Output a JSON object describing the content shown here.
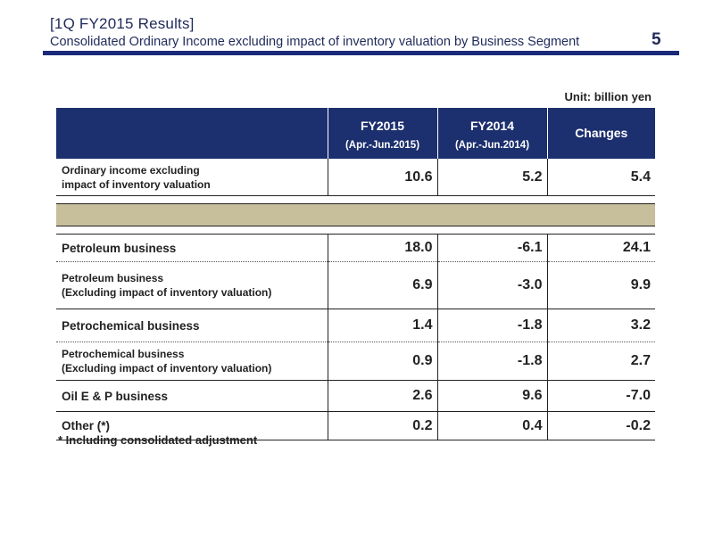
{
  "header": {
    "title": "[1Q FY2015 Results]",
    "subtitle": "Consolidated Ordinary Income excluding impact of inventory valuation by Business Segment",
    "page_number": "5",
    "rule_color": "#1a2a78"
  },
  "unit": "Unit: billion yen",
  "table": {
    "columns": [
      {
        "year": "FY2015",
        "period": "(Apr.-Jun.2015)"
      },
      {
        "year": "FY2014",
        "period": "(Apr.-Jun.2014)"
      },
      {
        "year": "Changes",
        "period": ""
      }
    ],
    "header_color": "#1c2f6e",
    "band_color": "#c7bf9c",
    "rows": [
      {
        "label_line1": "Ordinary income excluding",
        "label_line2": "impact of inventory valuation",
        "fy2015": "10.6",
        "fy2014": "5.2",
        "changes": "5.4"
      },
      {
        "label": "Petroleum business",
        "fy2015": "18.0",
        "fy2014": "-6.1",
        "changes": "24.1"
      },
      {
        "label_line1": "Petroleum business",
        "label_line2": "(Excluding impact of inventory valuation)",
        "fy2015": "6.9",
        "fy2014": "-3.0",
        "changes": "9.9"
      },
      {
        "label": "Petrochemical business",
        "fy2015": "1.4",
        "fy2014": "-1.8",
        "changes": "3.2"
      },
      {
        "label_line1": "Petrochemical business",
        "label_line2": "(Excluding impact of inventory valuation)",
        "fy2015": "0.9",
        "fy2014": "-1.8",
        "changes": "2.7"
      },
      {
        "label": "Oil E & P business",
        "fy2015": "2.6",
        "fy2014": "9.6",
        "changes": "-7.0"
      },
      {
        "label": "Other (*)",
        "fy2015": "0.2",
        "fy2014": "0.4",
        "changes": "-0.2"
      }
    ]
  },
  "footnote": "* Including consolidated adjustment"
}
